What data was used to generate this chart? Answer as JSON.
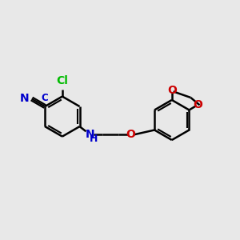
{
  "background_color": "#e8e8e8",
  "bond_color": "#000000",
  "bond_width": 1.8,
  "atom_colors": {
    "Cl": "#00bb00",
    "N": "#0000cc",
    "O": "#cc0000",
    "C": "#0000cc"
  },
  "font_size": 10,
  "font_size_sub": 8.5
}
